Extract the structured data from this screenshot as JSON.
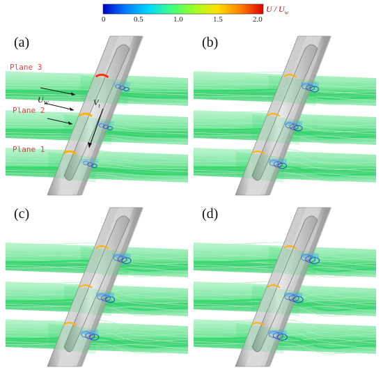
{
  "colorbar": {
    "title": "U / U",
    "title_sub": "w",
    "ticks": [
      "0",
      "0.5",
      "1.0",
      "1.5",
      "2.0"
    ],
    "stops": [
      "#0000c8",
      "#0080ff",
      "#00d8ff",
      "#40ff80",
      "#a0ff20",
      "#ffe000",
      "#ff8000",
      "#e00000"
    ]
  },
  "panels": [
    {
      "label": "(a)",
      "planes": [
        "Plane 3",
        "Plane 2",
        "Plane 1"
      ],
      "annotated": true
    },
    {
      "label": "(b)",
      "annotated": false
    },
    {
      "label": "(c)",
      "annotated": false
    },
    {
      "label": "(d)",
      "annotated": false
    }
  ],
  "annotations": {
    "uw": "U",
    "uw_sub": "W",
    "vt": "V",
    "vt_sub": "t"
  },
  "colors": {
    "streamline": "#2fd86a",
    "streamline_light": "#a8f0c0",
    "track": "#bdbdbd",
    "track_dark": "#8a8a8a",
    "train": "#cfcfcf",
    "vortex": "#1f3fd0",
    "highspeed": "#ff3000"
  }
}
